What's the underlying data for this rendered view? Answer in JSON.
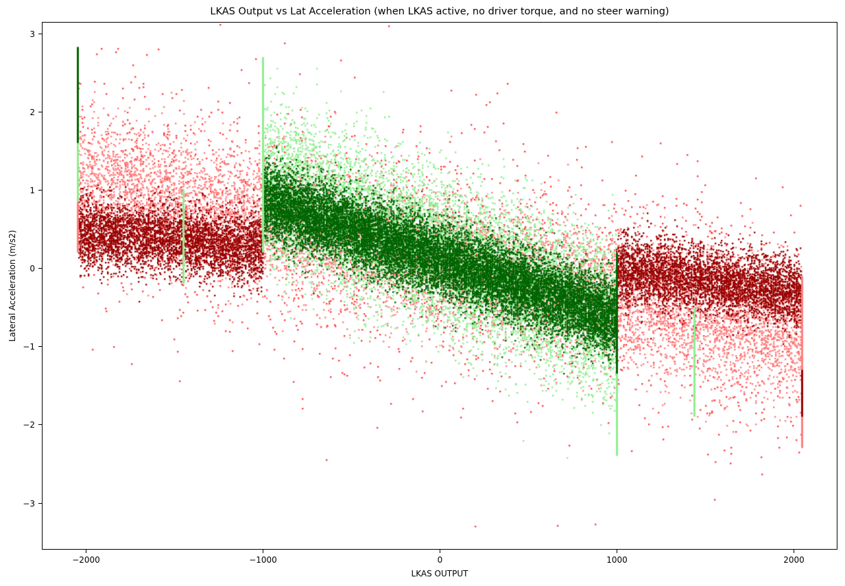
{
  "chart_data": {
    "type": "scatter",
    "title": "LKAS Output vs Lat Acceleration (when LKAS active, no driver torque, and no steer warning)",
    "xlabel": "LKAS OUTPUT",
    "ylabel": "Lateral Acceleration (m/s2)",
    "xlim": [
      -2250,
      2250
    ],
    "ylim": [
      -3.6,
      3.15
    ],
    "xticks": [
      -2000,
      -1000,
      0,
      1000,
      2000
    ],
    "xtick_labels": [
      "−2000",
      "−1000",
      "0",
      "1000",
      "2000"
    ],
    "yticks": [
      3,
      2,
      1,
      0,
      -1,
      -2,
      -3
    ],
    "ytick_labels": [
      "3",
      "2",
      "1",
      "0",
      "−1",
      "−2",
      "−3"
    ],
    "grid": false,
    "legend": null,
    "x_range_data": [
      -2047,
      2047
    ],
    "trend": "negative linear correlation; lateral acceleration ~ 0.3 - 0.00045 * lkas_output",
    "series": [
      {
        "name": "sparse outliers (red)",
        "color": "#ff4040",
        "count": 2600,
        "x_range": [
          -2047,
          2047
        ],
        "center_intercept": 0.15,
        "slope_per_1000": -0.45,
        "spread": 0.75
      },
      {
        "name": "high-magnitude band (salmon)",
        "color": "#ff7f7f",
        "count": 9000,
        "x_range": [
          -2047,
          2047
        ],
        "center_intercept": 0.1,
        "slope_per_1000": -0.5,
        "spread": 0.42
      },
      {
        "name": "high-magnitude core (dark red)",
        "color": "#990000",
        "count": 8000,
        "x_range": [
          -2047,
          2047
        ],
        "center_intercept": 0.05,
        "slope_per_1000": -0.25,
        "spread": 0.22,
        "exclude_x": [
          -1000,
          1000
        ],
        "note": "dark red sits below the salmon band on the left and above it on the right"
      },
      {
        "name": "mid-range band (light green)",
        "color": "#90ee90",
        "count": 9000,
        "x_range": [
          -1000,
          1000
        ],
        "center_intercept": 0.2,
        "slope_per_1000": -0.9,
        "spread": 0.48
      },
      {
        "name": "mid-range core (dark green)",
        "color": "#006400",
        "count": 14000,
        "x_range": [
          -1000,
          1000
        ],
        "center_intercept": 0.12,
        "slope_per_1000": -0.75,
        "spread": 0.24
      }
    ],
    "vertical_streaks": [
      {
        "x": -2047,
        "color": "#006400",
        "y_range": [
          1.6,
          2.83
        ]
      },
      {
        "x": -2047,
        "color": "#90ee90",
        "y_range": [
          0.85,
          1.6
        ]
      },
      {
        "x": -2047,
        "color": "#ff7f7f",
        "y_range": [
          0.2,
          0.85
        ]
      },
      {
        "x": -1450,
        "color": "#90ee90",
        "y_range": [
          -0.2,
          1.0
        ]
      },
      {
        "x": -1000,
        "color": "#90ee90",
        "y_range": [
          0.2,
          2.7
        ]
      },
      {
        "x": 1000,
        "color": "#006400",
        "y_range": [
          -1.35,
          0.2
        ]
      },
      {
        "x": 1000,
        "color": "#90ee90",
        "y_range": [
          -2.4,
          -1.35
        ]
      },
      {
        "x": 1440,
        "color": "#90ee90",
        "y_range": [
          -1.9,
          -0.5
        ]
      },
      {
        "x": 2047,
        "color": "#ff7f7f",
        "y_range": [
          -2.3,
          -0.1
        ]
      },
      {
        "x": 2047,
        "color": "#990000",
        "y_range": [
          -1.9,
          -1.3
        ]
      }
    ],
    "notable_outliers": [
      {
        "x": 200,
        "y": -3.3,
        "color": "#ff4040"
      },
      {
        "x": 1250,
        "y": 1.6,
        "color": "#ff4040"
      },
      {
        "x": 1400,
        "y": 1.45,
        "color": "#ff4040"
      }
    ]
  }
}
